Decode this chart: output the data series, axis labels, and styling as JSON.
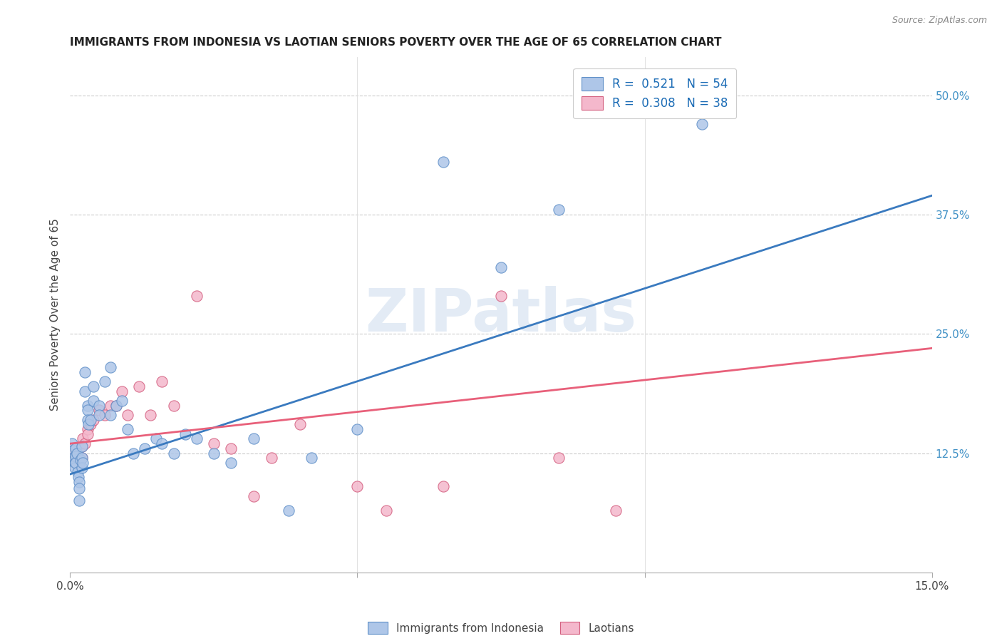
{
  "title": "IMMIGRANTS FROM INDONESIA VS LAOTIAN SENIORS POVERTY OVER THE AGE OF 65 CORRELATION CHART",
  "source": "Source: ZipAtlas.com",
  "ylabel": "Seniors Poverty Over the Age of 65",
  "xlim": [
    0.0,
    0.15
  ],
  "ylim": [
    0.0,
    0.54
  ],
  "ytick_positions": [
    0.125,
    0.25,
    0.375,
    0.5
  ],
  "ytick_labels": [
    "12.5%",
    "25.0%",
    "37.5%",
    "50.0%"
  ],
  "r_indonesia": 0.521,
  "n_indonesia": 54,
  "r_laotian": 0.308,
  "n_laotian": 38,
  "color_indonesia": "#aec6e8",
  "color_laotian": "#f4b8cc",
  "color_line_indonesia": "#3a7abf",
  "color_line_laotian": "#e8607a",
  "watermark": "ZIPatlas",
  "indonesia_x": [
    0.0003,
    0.0005,
    0.0006,
    0.0007,
    0.0008,
    0.0008,
    0.001,
    0.001,
    0.001,
    0.0012,
    0.0013,
    0.0014,
    0.0015,
    0.0016,
    0.0016,
    0.0018,
    0.002,
    0.002,
    0.002,
    0.0022,
    0.0025,
    0.0025,
    0.003,
    0.003,
    0.003,
    0.0032,
    0.0035,
    0.004,
    0.004,
    0.005,
    0.005,
    0.006,
    0.007,
    0.007,
    0.008,
    0.009,
    0.01,
    0.011,
    0.013,
    0.015,
    0.016,
    0.018,
    0.02,
    0.022,
    0.025,
    0.028,
    0.032,
    0.038,
    0.042,
    0.05,
    0.065,
    0.075,
    0.085,
    0.11
  ],
  "indonesia_y": [
    0.135,
    0.128,
    0.12,
    0.118,
    0.115,
    0.11,
    0.13,
    0.122,
    0.115,
    0.125,
    0.105,
    0.1,
    0.095,
    0.088,
    0.075,
    0.118,
    0.132,
    0.12,
    0.11,
    0.115,
    0.19,
    0.21,
    0.175,
    0.17,
    0.16,
    0.155,
    0.16,
    0.195,
    0.18,
    0.175,
    0.165,
    0.2,
    0.165,
    0.215,
    0.175,
    0.18,
    0.15,
    0.125,
    0.13,
    0.14,
    0.135,
    0.125,
    0.145,
    0.14,
    0.125,
    0.115,
    0.14,
    0.065,
    0.12,
    0.15,
    0.43,
    0.32,
    0.38,
    0.47
  ],
  "laotian_x": [
    0.0003,
    0.0005,
    0.0006,
    0.0008,
    0.001,
    0.0012,
    0.0015,
    0.0016,
    0.002,
    0.002,
    0.0022,
    0.0025,
    0.003,
    0.003,
    0.0035,
    0.004,
    0.005,
    0.006,
    0.007,
    0.008,
    0.009,
    0.01,
    0.012,
    0.014,
    0.016,
    0.018,
    0.022,
    0.025,
    0.028,
    0.032,
    0.035,
    0.04,
    0.05,
    0.055,
    0.065,
    0.075,
    0.085,
    0.095
  ],
  "laotian_y": [
    0.125,
    0.13,
    0.12,
    0.118,
    0.115,
    0.128,
    0.12,
    0.115,
    0.132,
    0.12,
    0.14,
    0.135,
    0.15,
    0.145,
    0.155,
    0.16,
    0.17,
    0.165,
    0.175,
    0.175,
    0.19,
    0.165,
    0.195,
    0.165,
    0.2,
    0.175,
    0.29,
    0.135,
    0.13,
    0.08,
    0.12,
    0.155,
    0.09,
    0.065,
    0.09,
    0.29,
    0.12,
    0.065
  ],
  "legend_label_indonesia": "Immigrants from Indonesia",
  "legend_label_laotian": "Laotians",
  "regression_indonesia": [
    0.103,
    0.395
  ],
  "regression_laotian": [
    0.135,
    0.235
  ]
}
